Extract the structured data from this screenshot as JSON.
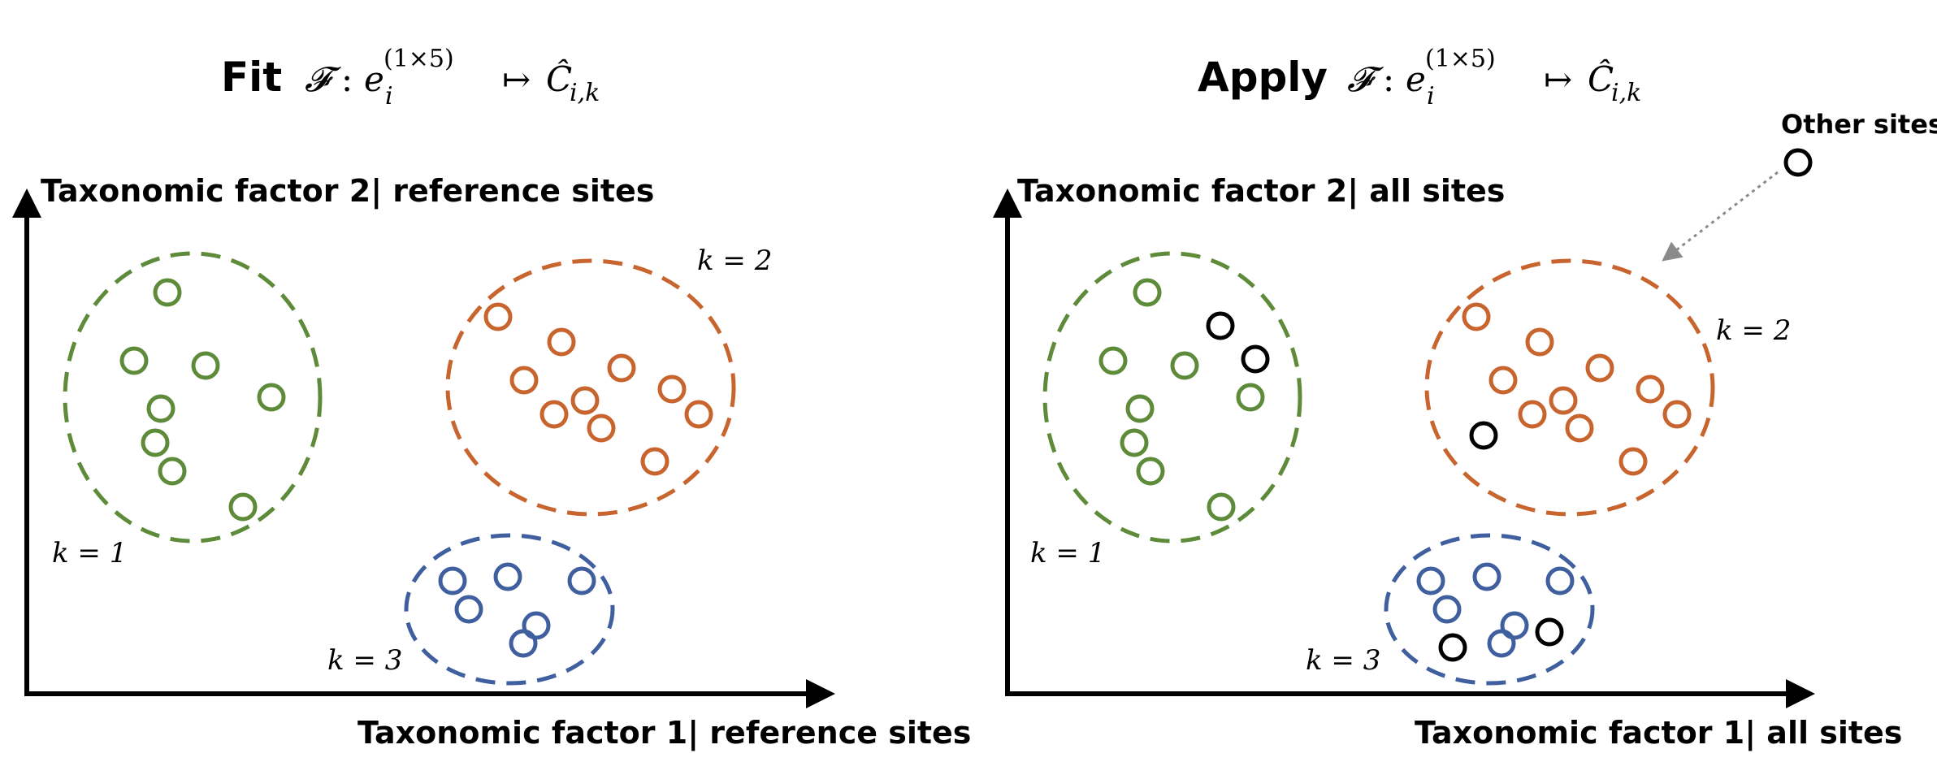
{
  "colors": {
    "cluster1": "#5e8b3a",
    "cluster2": "#c8642d",
    "cluster3": "#3f5f9f",
    "other": "#000000",
    "arrow": "#8a8a8a"
  },
  "left": {
    "title_word": "Fit",
    "formula": {
      "F": "𝓕",
      "colon": ":",
      "e": "e",
      "sup": "(1×5)",
      "sub": "i",
      "maps": "↦",
      "C": "Ĉ",
      "Csub": "i,k"
    },
    "y_axis_label": "Taxonomic factor 2| reference sites",
    "x_axis_label": "Taxonomic factor 1| reference sites",
    "cluster_labels": {
      "k1": "k = 1",
      "k2": "k = 2",
      "k3": "k = 3"
    }
  },
  "right": {
    "title_word": "Apply",
    "formula": {
      "F": "𝓕",
      "colon": ":",
      "e": "e",
      "sup": "(1×5)",
      "sub": "i",
      "maps": "↦",
      "C": "Ĉ",
      "Csub": "i,k"
    },
    "y_axis_label": "Taxonomic factor 2| all sites",
    "x_axis_label": "Taxonomic factor 1| all sites",
    "cluster_labels": {
      "k1": "k = 1",
      "k2": "k = 2",
      "k3": "k = 3"
    },
    "other_sites_label": "Other sites"
  },
  "icons": {
    "axis_arrow": "arrow-up-icon",
    "pointer": "dotted-arrow-icon"
  }
}
